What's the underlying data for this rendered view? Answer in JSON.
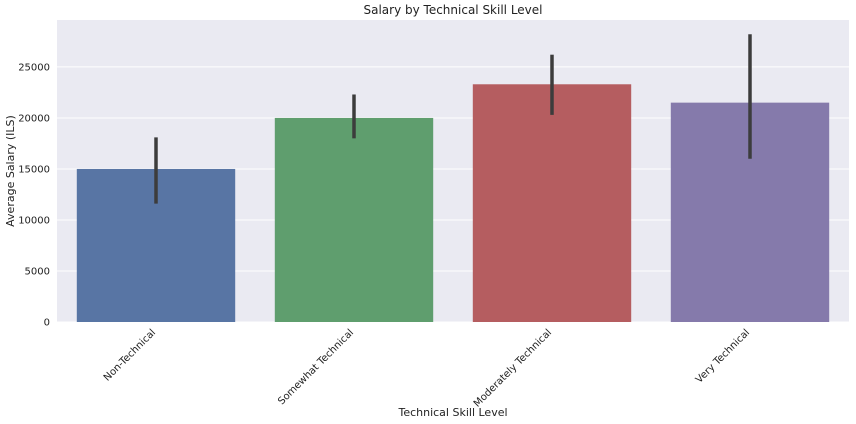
{
  "chart_data": {
    "type": "bar",
    "title": "Salary by Technical Skill Level",
    "xlabel": "Technical Skill Level",
    "ylabel": "Average Salary (ILS)",
    "categories": [
      "Non-Technical",
      "Somewhat Technical",
      "Moderately Technical",
      "Very Technical"
    ],
    "values": [
      15000,
      20000,
      23300,
      21500
    ],
    "error_bars": [
      {
        "low": 11600,
        "high": 18100
      },
      {
        "low": 18000,
        "high": 22300
      },
      {
        "low": 20300,
        "high": 26200
      },
      {
        "low": 16000,
        "high": 28200
      }
    ],
    "colors": [
      "#5875a4",
      "#5f9e6e",
      "#b55d60",
      "#857aab"
    ],
    "error_color": "#3c3c3c",
    "yticks": [
      0,
      5000,
      10000,
      15000,
      20000,
      25000
    ],
    "ytick_labels": [
      "0",
      "5000",
      "10000",
      "15000",
      "20000",
      "25000"
    ],
    "ylim": [
      0,
      29600
    ],
    "background": "#eaeaf2",
    "grid": true,
    "grid_color": "#ffffff",
    "legend": false
  }
}
